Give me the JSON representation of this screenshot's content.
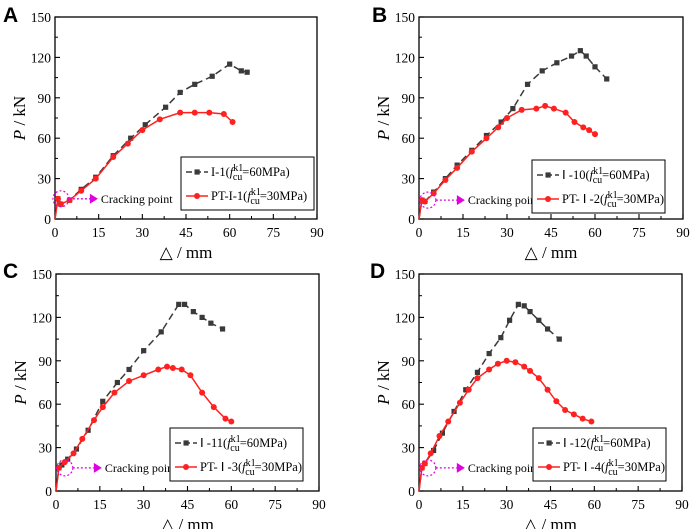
{
  "figure": {
    "x_axis_label": "△ / mm",
    "y_axis_label_italic": "P",
    "y_axis_label_rest": " / kN",
    "annotation_text": "Cracking point",
    "annotation_color": "#e000e0",
    "series_colors": {
      "series1": "#3a3a3a",
      "series2": "#ff2020"
    }
  },
  "chart_data": [
    {
      "type": "line",
      "panel": "A",
      "xlabel": "△ / mm",
      "ylabel": "P / kN",
      "xlim": [
        0,
        90
      ],
      "ylim": [
        0,
        150
      ],
      "xticks": [
        0,
        15,
        30,
        45,
        60,
        75,
        90
      ],
      "yticks": [
        0,
        30,
        60,
        90,
        120,
        150
      ],
      "xtick_labels": [
        "0",
        "15",
        "30",
        "45",
        "60",
        "75",
        "90"
      ],
      "ytick_labels": [
        "0",
        "30",
        "60",
        "90",
        "120",
        "150"
      ],
      "cracking_point": [
        1,
        15
      ],
      "series": [
        {
          "name": "I-1(f_cu^k1=60MPa)",
          "legend": {
            "pre": "I-1(",
            "f": "f",
            "sub": "cu",
            "sup": "k1",
            "post": "=60MPa)"
          },
          "style": "dashed-square",
          "x": [
            0,
            1,
            2,
            5,
            9,
            14,
            20,
            26,
            31,
            38,
            43,
            48,
            54,
            60,
            64,
            66
          ],
          "y": [
            0,
            15,
            11,
            14,
            22,
            31,
            47,
            60,
            70,
            83,
            94,
            100,
            106,
            115,
            110,
            109
          ]
        },
        {
          "name": "PT-I-1(f_cu^k1=30MPa)",
          "legend": {
            "pre": "PT-I-1(",
            "f": "f",
            "sub": "cu",
            "sup": "k1",
            "post": "=30MPa)"
          },
          "style": "solid-circle",
          "x": [
            0,
            1,
            2,
            5,
            9,
            14,
            20,
            25,
            30,
            36,
            43,
            48,
            53,
            58,
            61
          ],
          "y": [
            0,
            15,
            11,
            14,
            21,
            30,
            46,
            56,
            66,
            74,
            79,
            79,
            79,
            78,
            72
          ]
        }
      ]
    },
    {
      "type": "line",
      "panel": "B",
      "xlabel": "△ / mm",
      "ylabel": "P / kN",
      "xlim": [
        0,
        90
      ],
      "ylim": [
        0,
        150
      ],
      "xticks": [
        0,
        15,
        30,
        45,
        60,
        75,
        90
      ],
      "yticks": [
        0,
        30,
        60,
        90,
        120,
        150
      ],
      "xtick_labels": [
        "0",
        "15",
        "30",
        "45",
        "60",
        "75",
        "90"
      ],
      "ytick_labels": [
        "0",
        "30",
        "60",
        "90",
        "120",
        "150"
      ],
      "cracking_point": [
        2,
        14
      ],
      "series": [
        {
          "name": "Ⅰ-10(f_cu^k1=60MPa)",
          "legend": {
            "pre": "Ⅰ -10(",
            "f": "f",
            "sub": "cu",
            "sup": "k1",
            "post": "=60MPa)"
          },
          "style": "dashed-square",
          "x": [
            0,
            1,
            2,
            5,
            9,
            13,
            18,
            23,
            28,
            32,
            37,
            42,
            47,
            52,
            55,
            57,
            60,
            64
          ],
          "y": [
            0,
            14,
            13,
            20,
            30,
            40,
            51,
            62,
            72,
            82,
            100,
            110,
            116,
            121,
            125,
            121,
            113,
            104
          ]
        },
        {
          "name": "PT-Ⅰ-2(f_cu^k1=30MPa)",
          "legend": {
            "pre": "PT- Ⅰ -2(",
            "f": "f",
            "sub": "cu",
            "sup": "k1",
            "post": "=30MPa)"
          },
          "style": "solid-circle",
          "x": [
            0,
            1,
            2,
            5,
            9,
            13,
            18,
            23,
            27,
            30,
            35,
            40,
            43,
            46,
            50,
            53,
            56,
            58,
            60
          ],
          "y": [
            0,
            14,
            13,
            19,
            29,
            38,
            50,
            60,
            68,
            75,
            81,
            82,
            84,
            82,
            79,
            72,
            68,
            66,
            63
          ]
        }
      ]
    },
    {
      "type": "line",
      "panel": "C",
      "xlabel": "△ / mm",
      "ylabel": "P / kN",
      "xlim": [
        0,
        90
      ],
      "ylim": [
        0,
        150
      ],
      "xticks": [
        0,
        15,
        30,
        45,
        60,
        75,
        90
      ],
      "yticks": [
        0,
        30,
        60,
        90,
        120,
        150
      ],
      "xtick_labels": [
        "0",
        "15",
        "30",
        "45",
        "60",
        "75",
        "90"
      ],
      "ytick_labels": [
        "0",
        "30",
        "60",
        "90",
        "120",
        "150"
      ],
      "cracking_point": [
        2,
        16
      ],
      "series": [
        {
          "name": "Ⅰ-11(f_cu^k1=60MPa)",
          "legend": {
            "pre": "Ⅰ -11(",
            "f": "f",
            "sub": "cu",
            "sup": "k1",
            "post": "=60MPa)"
          },
          "style": "dashed-square",
          "x": [
            0,
            1,
            2,
            4,
            7,
            11,
            16,
            21,
            25,
            30,
            36,
            42,
            44,
            47,
            50,
            53,
            57
          ],
          "y": [
            0,
            16,
            18,
            22,
            29,
            42,
            62,
            75,
            84,
            97,
            110,
            129,
            129,
            124,
            120,
            116,
            112
          ]
        },
        {
          "name": "PT-Ⅰ-3(f_cu^k1=30MPa)",
          "legend": {
            "pre": "PT- Ⅰ -3(",
            "f": "f",
            "sub": "cu",
            "sup": "k1",
            "post": "=30MPa)"
          },
          "style": "solid-circle",
          "x": [
            0,
            1,
            3,
            6,
            9,
            13,
            16,
            20,
            25,
            30,
            35,
            38,
            40,
            43,
            46,
            50,
            54,
            58,
            60
          ],
          "y": [
            0,
            16,
            20,
            26,
            36,
            49,
            58,
            68,
            76,
            80,
            84,
            86,
            85,
            84,
            80,
            68,
            58,
            50,
            48
          ]
        }
      ]
    },
    {
      "type": "line",
      "panel": "D",
      "xlabel": "△ / mm",
      "ylabel": "P / kN",
      "xlim": [
        0,
        90
      ],
      "ylim": [
        0,
        150
      ],
      "xticks": [
        0,
        15,
        30,
        45,
        60,
        75,
        90
      ],
      "yticks": [
        0,
        30,
        60,
        90,
        120,
        150
      ],
      "xtick_labels": [
        "0",
        "15",
        "30",
        "45",
        "60",
        "75",
        "90"
      ],
      "ytick_labels": [
        "0",
        "30",
        "60",
        "90",
        "120",
        "150"
      ],
      "cracking_point": [
        2,
        16
      ],
      "series": [
        {
          "name": "Ⅰ-12(f_cu^k1=60MPa)",
          "legend": {
            "pre": "Ⅰ -12(",
            "f": "f",
            "sub": "cu",
            "sup": "k1",
            "post": "=60MPa)"
          },
          "style": "dashed-square",
          "x": [
            0,
            1,
            2,
            5,
            8,
            12,
            16,
            20,
            24,
            28,
            31,
            34,
            36,
            38,
            41,
            44,
            48
          ],
          "y": [
            0,
            16,
            19,
            28,
            40,
            55,
            70,
            82,
            95,
            106,
            118,
            129,
            128,
            124,
            118,
            112,
            105
          ]
        },
        {
          "name": "PT-Ⅰ-4(f_cu^k1=30MPa)",
          "legend": {
            "pre": "PT- Ⅰ -4(",
            "f": "f",
            "sub": "cu",
            "sup": "k1",
            "post": "=30MPa)"
          },
          "style": "solid-circle",
          "x": [
            0,
            1,
            2,
            4,
            7,
            10,
            14,
            17,
            20,
            24,
            27,
            30,
            33,
            36,
            38,
            41,
            44,
            47,
            50,
            53,
            56,
            59
          ],
          "y": [
            0,
            16,
            19,
            26,
            38,
            48,
            61,
            70,
            78,
            84,
            88,
            90,
            89,
            86,
            83,
            78,
            70,
            62,
            56,
            53,
            50,
            48
          ]
        }
      ]
    }
  ]
}
